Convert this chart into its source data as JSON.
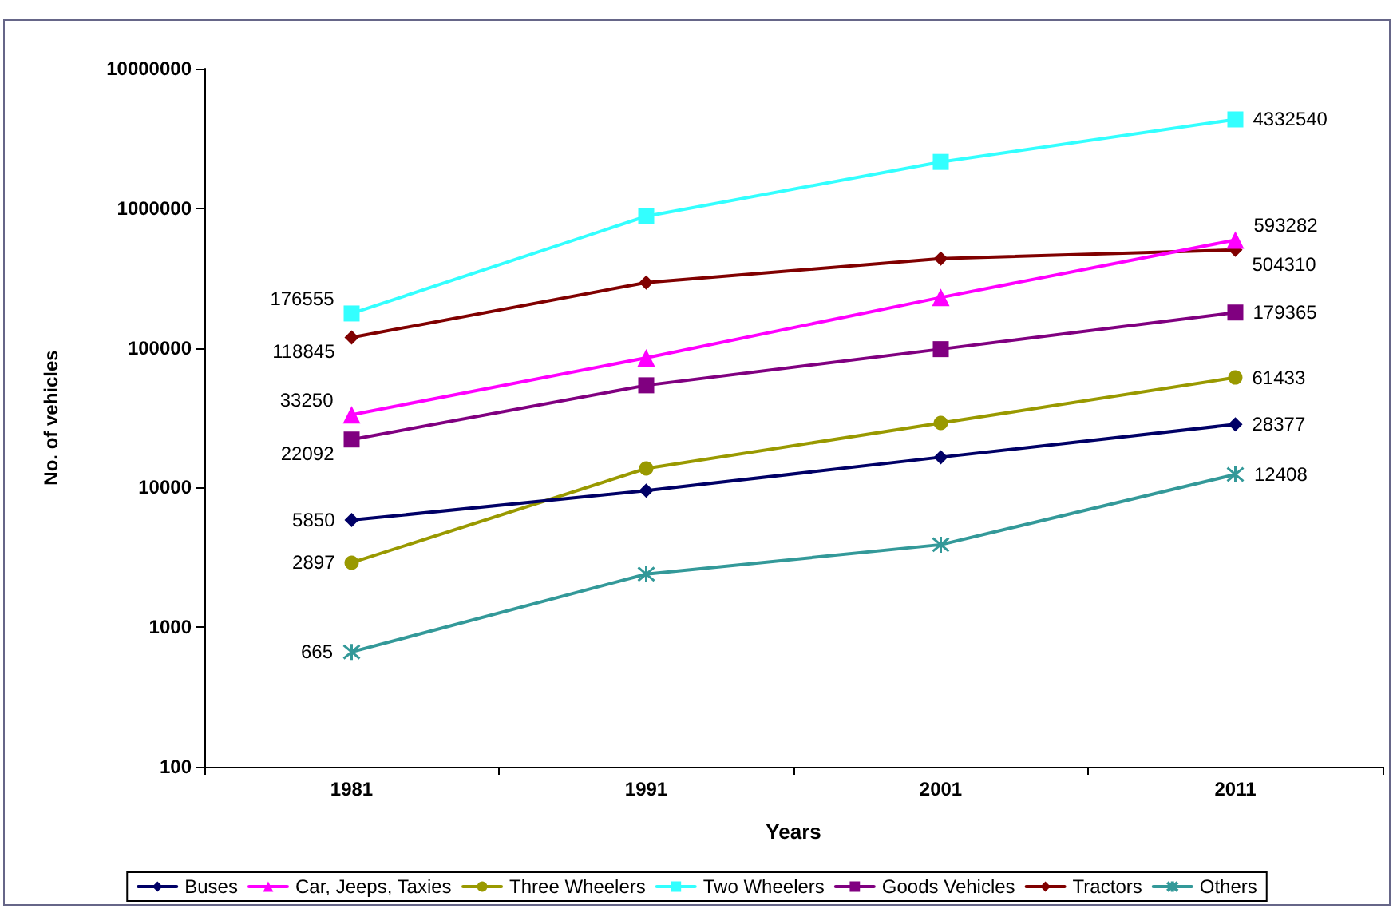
{
  "chart_data": {
    "type": "line",
    "xlabel": "Years",
    "ylabel": "No. of vehicles",
    "categories": [
      "1981",
      "1991",
      "2001",
      "2011"
    ],
    "log": "y",
    "ylim": [
      100,
      10000000
    ],
    "yticks": [
      100,
      1000,
      10000,
      100000,
      1000000,
      10000000
    ],
    "grid": false,
    "legend": "bottom",
    "series": [
      {
        "name": "Buses",
        "color": "#000066",
        "marker": "diamond",
        "values": [
          5850,
          9500,
          16500,
          28377
        ],
        "value_labels": [
          "5850",
          null,
          null,
          "28377"
        ]
      },
      {
        "name": "Car, Jeeps, Taxies",
        "color": "#ff00ff",
        "marker": "triangle",
        "values": [
          33250,
          85000,
          230000,
          593282
        ],
        "value_labels": [
          "33250",
          null,
          null,
          "593282"
        ]
      },
      {
        "name": "Three Wheelers",
        "color": "#999900",
        "marker": "circle",
        "values": [
          2897,
          13700,
          29000,
          61433
        ],
        "value_labels": [
          "2897",
          null,
          null,
          "61433"
        ]
      },
      {
        "name": "Two Wheelers",
        "color": "#33ffff",
        "marker": "square",
        "values": [
          176555,
          877000,
          2150000,
          4332540
        ],
        "value_labels": [
          "176555",
          null,
          null,
          "4332540"
        ]
      },
      {
        "name": "Goods Vehicles",
        "color": "#800080",
        "marker": "square",
        "values": [
          22092,
          54000,
          98000,
          179365
        ],
        "value_labels": [
          "22092",
          null,
          null,
          "179365"
        ]
      },
      {
        "name": "Tractors",
        "color": "#800000",
        "marker": "diamond",
        "values": [
          118845,
          294000,
          436000,
          504310
        ],
        "value_labels": [
          "118845",
          null,
          null,
          "504310"
        ]
      },
      {
        "name": "Others",
        "color": "#339999",
        "marker": "cross",
        "values": [
          665,
          2400,
          3900,
          12408
        ],
        "value_labels": [
          "665",
          null,
          null,
          "12408"
        ]
      }
    ]
  }
}
